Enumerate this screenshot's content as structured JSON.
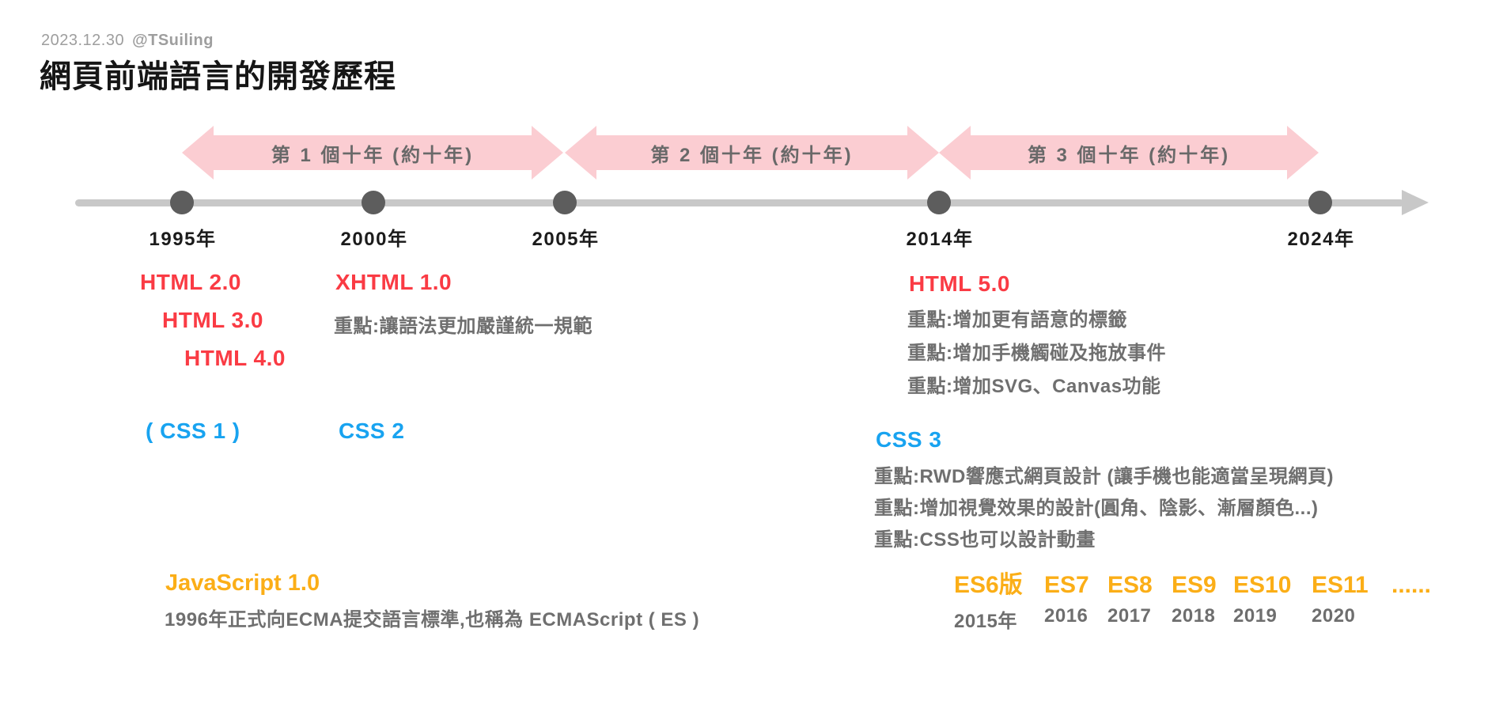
{
  "header": {
    "date": "2023.12.30",
    "author": "@TSuiling",
    "title": "網頁前端語言的開發歷程"
  },
  "timeline": {
    "decades": [
      {
        "label": "第 1 個十年 (約十年)"
      },
      {
        "label": "第 2 個十年 (約十年)"
      },
      {
        "label": "第 3 個十年 (約十年)"
      }
    ],
    "milestones": [
      {
        "year": "1995年"
      },
      {
        "year": "2000年"
      },
      {
        "year": "2005年"
      },
      {
        "year": "2014年"
      },
      {
        "year": "2024年"
      }
    ]
  },
  "html_track": {
    "era1_versions": [
      "HTML 2.0",
      "HTML 3.0",
      "HTML 4.0"
    ],
    "era2": {
      "title": "XHTML 1.0",
      "note": "重點:讓語法更加嚴謹統一規範"
    },
    "era3": {
      "title": "HTML 5.0",
      "notes": [
        "重點:增加更有語意的標籤",
        "重點:增加手機觸碰及拖放事件",
        "重點:增加SVG、Canvas功能"
      ]
    }
  },
  "css_track": {
    "css1": "( CSS 1 )",
    "css2": "CSS 2",
    "css3": {
      "title": "CSS 3",
      "notes": [
        "重點:RWD響應式網頁設計 (讓手機也能適當呈現網頁)",
        "重點:增加視覺效果的設計(圓角、陰影、漸層顏色...)",
        "重點:CSS也可以設計動畫"
      ]
    }
  },
  "js_track": {
    "title": "JavaScript 1.0",
    "note": "1996年正式向ECMA提交語言標準,也稱為 ECMAScript ( ES )",
    "es_versions": [
      {
        "label": "ES6版",
        "year": "2015年"
      },
      {
        "label": "ES7",
        "year": "2016"
      },
      {
        "label": "ES8",
        "year": "2017"
      },
      {
        "label": "ES9",
        "year": "2018"
      },
      {
        "label": "ES10",
        "year": "2019"
      },
      {
        "label": "ES11",
        "year": "2020"
      },
      {
        "label": "......",
        "year": ""
      }
    ]
  },
  "colors": {
    "html_red": "#fa3b44",
    "css_blue": "#18a3f0",
    "js_orange": "#fbae17",
    "arrow_pink": "#fbcdd2",
    "note_gray": "#6f6f6f",
    "dot_gray": "#5d5d5d",
    "line_gray": "#c8c8c8",
    "date_gray": "#9e9e9e"
  }
}
